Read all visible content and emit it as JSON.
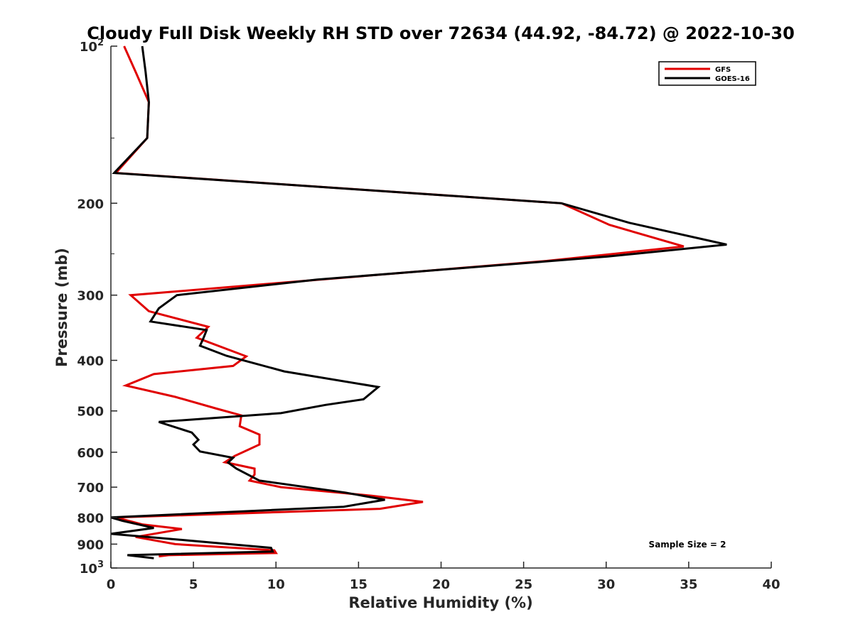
{
  "chart_data": {
    "type": "line",
    "title": "Cloudy Full Disk Weekly RH STD over 72634 (44.92, -84.72) @ 2022-10-30",
    "xlabel": "Relative Humidity (%)",
    "ylabel": "Pressure (mb)",
    "xlim": [
      0,
      40
    ],
    "ylim": [
      100,
      1000
    ],
    "yscale": "log",
    "y_reversed": true,
    "x_ticks": [
      "0",
      "5",
      "10",
      "15",
      "20",
      "25",
      "30",
      "35",
      "40"
    ],
    "y_ticks": [
      {
        "value": 100,
        "label": "10",
        "sup": "2"
      },
      {
        "value": 200,
        "label": "200",
        "sup": ""
      },
      {
        "value": 300,
        "label": "300",
        "sup": ""
      },
      {
        "value": 400,
        "label": "400",
        "sup": ""
      },
      {
        "value": 500,
        "label": "500",
        "sup": ""
      },
      {
        "value": 600,
        "label": "600",
        "sup": ""
      },
      {
        "value": 700,
        "label": "700",
        "sup": ""
      },
      {
        "value": 800,
        "label": "800",
        "sup": ""
      },
      {
        "value": 900,
        "label": "900",
        "sup": ""
      },
      {
        "value": 1000,
        "label": "10",
        "sup": "3"
      }
    ],
    "grid": false,
    "legend_position": "top-right",
    "annotation": "Sample Size = 2",
    "series": [
      {
        "name": "GFS",
        "color": "#e00000",
        "x": [
          0.8,
          1.5,
          2.3,
          2.2,
          0.3,
          27.3,
          30.2,
          34.7,
          26.4,
          9.8,
          1.2,
          2.3,
          5.9,
          5.2,
          8.2,
          7.4,
          2.6,
          0.9,
          3.9,
          6.4,
          7.9,
          7.8,
          9.0,
          9.0,
          7.5,
          6.9,
          8.7,
          8.7,
          8.4,
          10.3,
          15.8,
          18.9,
          16.3,
          0.3,
          1.9,
          4.3,
          1.5,
          3.9,
          9.9,
          10.0,
          3.5,
          2.9
        ],
        "y": [
          100,
          112,
          128,
          150,
          175,
          200,
          220,
          242,
          258,
          285,
          300,
          322,
          345,
          362,
          393,
          410,
          425,
          447,
          470,
          495,
          510,
          535,
          555,
          580,
          610,
          627,
          645,
          662,
          680,
          700,
          727,
          747,
          770,
          800,
          825,
          842,
          872,
          900,
          925,
          936,
          945,
          950
        ]
      },
      {
        "name": "GOES-16",
        "color": "#000000",
        "x": [
          1.9,
          2.1,
          2.3,
          2.2,
          0.2,
          27.3,
          31.4,
          37.3,
          30.1,
          12.5,
          4.0,
          2.9,
          2.4,
          5.8,
          5.6,
          5.4,
          7.0,
          10.5,
          16.2,
          15.3,
          13.0,
          10.3,
          2.9,
          4.9,
          5.3,
          5.0,
          5.4,
          7.4,
          7.1,
          7.6,
          9.0,
          14.2,
          16.6,
          14.1,
          0.0,
          0.7,
          2.6,
          0.0,
          3.7,
          9.7,
          9.8,
          1.0,
          2.6
        ],
        "y": [
          100,
          112,
          128,
          150,
          175,
          200,
          218,
          240,
          253,
          280,
          300,
          318,
          337,
          350,
          363,
          375,
          392,
          420,
          450,
          475,
          487,
          505,
          525,
          550,
          568,
          580,
          598,
          615,
          628,
          645,
          680,
          717,
          740,
          763,
          800,
          812,
          838,
          860,
          880,
          915,
          930,
          945,
          958
        ]
      }
    ]
  }
}
